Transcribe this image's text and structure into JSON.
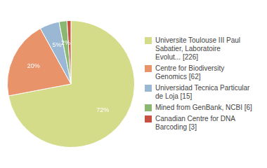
{
  "chart_data": {
    "type": "pie",
    "categories": [
      "Universite Toulouse III Paul\nSabatier, Laboratoire\nEvolut... [226]",
      "Centre for Biodiversity\nGenomics [62]",
      "Universidad Tecnica Particular\nde Loja [15]",
      "Mined from GenBank, NCBI [6]",
      "Canadian Centre for DNA\nBarcoding [3]"
    ],
    "values": [
      72,
      20,
      5,
      2,
      1
    ],
    "value_labels": [
      "72%",
      "20%",
      "5%",
      "2%",
      null
    ],
    "colors": [
      "#d4dc8a",
      "#e8936a",
      "#9ab8d4",
      "#8ab870",
      "#c85040"
    ],
    "data_labels": true,
    "legend": "right"
  }
}
